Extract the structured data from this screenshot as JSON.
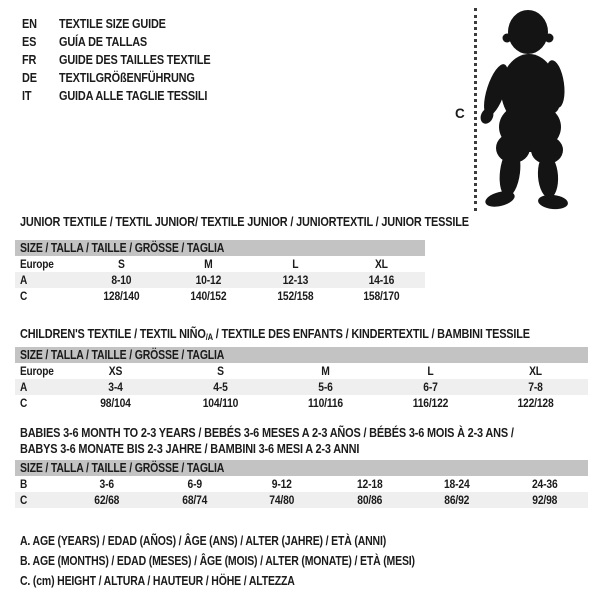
{
  "page": {
    "background": "#ffffff",
    "text_color": "#1b1b1b",
    "size_bar_color": "#c3c3c3",
    "shaded_row_color": "#efefef",
    "silhouette_color": "#141414"
  },
  "languages": [
    {
      "code": "EN",
      "label": "TEXTILE SIZE GUIDE"
    },
    {
      "code": "ES",
      "label": "GUÍA DE TALLAS"
    },
    {
      "code": "FR",
      "label": "GUIDE DES TAILLES TEXTILE"
    },
    {
      "code": "DE",
      "label": "TEXTILGRÖßENFÜHRUNG"
    },
    {
      "code": "IT",
      "label": "GUIDA ALLE TAGLIE TESSILI"
    }
  ],
  "figure": {
    "label": "C",
    "icon": "baby-silhouette"
  },
  "sections": [
    {
      "title": "JUNIOR TEXTILE / TEXTIL JUNIOR/ TEXTILE JUNIOR / JUNIORTEXTIL / JUNIOR TESSILE",
      "size_bar": "SIZE / TALLA / TAILLE / GRÖSSE / TAGLIA",
      "rows": [
        {
          "label": "Europe",
          "cells": [
            "S",
            "M",
            "L",
            "XL"
          ]
        },
        {
          "label": "A",
          "cells": [
            "8-10",
            "10-12",
            "12-13",
            "14-16"
          ]
        },
        {
          "label": "C",
          "cells": [
            "128/140",
            "140/152",
            "152/158",
            "158/170"
          ]
        }
      ]
    },
    {
      "title_pre": "CHILDREN'S TEXTILE / TEXTIL NIÑO",
      "title_sub": "/A",
      "title_post": " / TEXTILE DES ENFANTS / KINDERTEXTIL / BAMBINI TESSILE",
      "size_bar": "SIZE / TALLA / TAILLE / GRÖSSE / TAGLIA",
      "rows": [
        {
          "label": "Europe",
          "cells": [
            "XS",
            "S",
            "M",
            "L",
            "XL"
          ]
        },
        {
          "label": "A",
          "cells": [
            "3-4",
            "4-5",
            "5-6",
            "6-7",
            "7-8"
          ]
        },
        {
          "label": "C",
          "cells": [
            "98/104",
            "104/110",
            "110/116",
            "116/122",
            "122/128"
          ]
        }
      ]
    },
    {
      "title_line1": "BABIES 3-6 MONTH TO 2-3 YEARS / BEBÉS 3-6 MESES A 2-3 AÑOS / BÉBÉS 3-6 MOIS À 2-3 ANS /",
      "title_line2": "BABYS 3-6 MONATE BIS 2-3 JAHRE / BAMBINI 3-6 MESI A 2-3 ANNI",
      "size_bar": "SIZE / TALLA / TAILLE / GRÖSSE / TAGLIA",
      "rows": [
        {
          "label": "B",
          "cells": [
            "3-6",
            "6-9",
            "9-12",
            "12-18",
            "18-24",
            "24-36"
          ]
        },
        {
          "label": "C",
          "cells": [
            "62/68",
            "68/74",
            "74/80",
            "80/86",
            "86/92",
            "92/98"
          ]
        }
      ]
    }
  ],
  "footnotes": [
    "A. AGE (YEARS) / EDAD (AÑOS) / ÂGE (ANS) / ALTER (JAHRE) / ETÀ (ANNI)",
    "B. AGE (MONTHS) / EDAD (MESES) / ÂGE (MOIS) / ALTER (MONATE) / ETÀ (MESI)",
    "C. (cm) HEIGHT / ALTURA / HAUTEUR / HÖHE / ALTEZZA"
  ]
}
